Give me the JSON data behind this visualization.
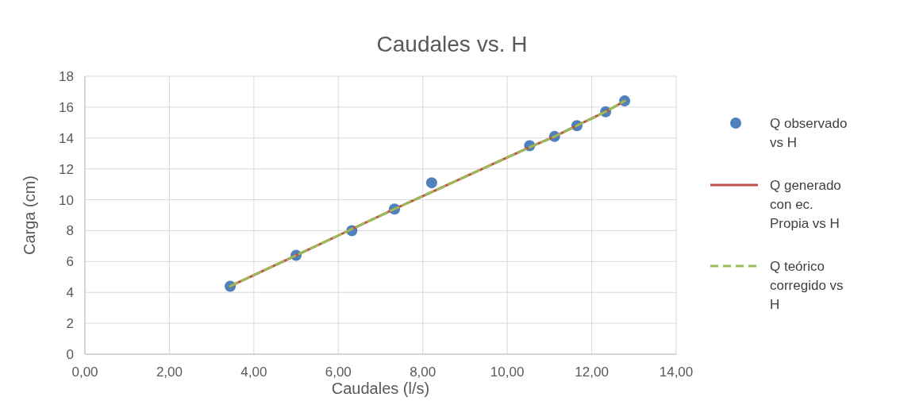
{
  "chart_data": {
    "type": "scatter",
    "title": "Caudales vs. H",
    "xlabel": "Caudales (l/s)",
    "ylabel": "Carga (cm)",
    "xlim": [
      0,
      14
    ],
    "xticks": [
      {
        "value": 0,
        "label": "0,00"
      },
      {
        "value": 2,
        "label": "2,00"
      },
      {
        "value": 4,
        "label": "4,00"
      },
      {
        "value": 6,
        "label": "6,00"
      },
      {
        "value": 8,
        "label": "8,00"
      },
      {
        "value": 10,
        "label": "10,00"
      },
      {
        "value": 12,
        "label": "12,00"
      },
      {
        "value": 14,
        "label": "14,00"
      }
    ],
    "ylim": [
      0,
      18
    ],
    "yticks": [
      0,
      2,
      4,
      6,
      8,
      10,
      12,
      14,
      16,
      18
    ],
    "grid": true,
    "legend": "right",
    "series": [
      {
        "name": "Q observado vs H",
        "marker": "circle",
        "color": "#4f81bd",
        "x": [
          3.44,
          5.0,
          6.32,
          7.33,
          8.21,
          10.53,
          11.12,
          11.65,
          12.33,
          12.78
        ],
        "values": [
          4.4,
          6.4,
          8.0,
          9.4,
          11.1,
          13.5,
          14.1,
          14.8,
          15.7,
          16.4
        ]
      },
      {
        "name": "Q generado con ec. Propia vs H",
        "type": "line",
        "line_style": "solid",
        "marker": "none",
        "color": "#c0504d",
        "x": [
          3.44,
          5.0,
          6.32,
          7.33,
          8.21,
          10.53,
          11.12,
          11.65,
          12.33,
          12.78
        ],
        "values": [
          4.4,
          6.4,
          8.1,
          9.4,
          10.5,
          13.4,
          14.1,
          14.8,
          15.7,
          16.4
        ]
      },
      {
        "name": "Q teórico corregido vs H",
        "type": "line",
        "line_style": "dashed",
        "marker": "none",
        "color": "#9bbb59",
        "x": [
          3.44,
          5.0,
          6.32,
          7.33,
          8.21,
          10.53,
          11.12,
          11.65,
          12.33,
          12.78
        ],
        "values": [
          4.4,
          6.4,
          8.1,
          9.4,
          10.5,
          13.4,
          14.1,
          14.8,
          15.7,
          16.4
        ]
      }
    ]
  }
}
